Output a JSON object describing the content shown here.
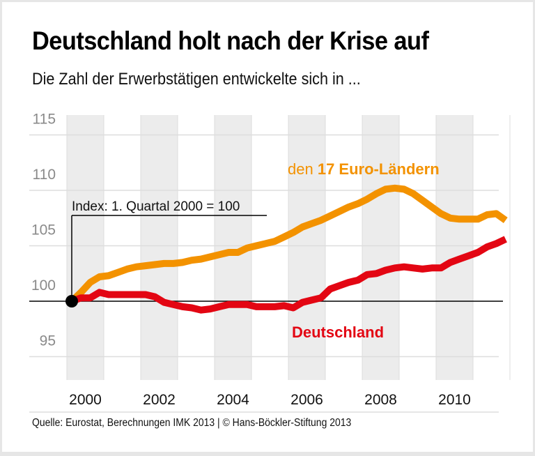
{
  "header": {
    "title": "Deutschland holt nach der Krise auf",
    "subtitle": "Die Zahl der Erwerbstätigen entwickelte sich in ..."
  },
  "footer": {
    "source": "Quelle: Eurostat, Berechnungen IMK 2013 | © Hans-Böckler-Stiftung 2013"
  },
  "colors": {
    "euro": "#f39200",
    "germany": "#e30613",
    "band": "#ececec",
    "grid": "#dddddd",
    "axis_label": "#8a8a8a"
  },
  "chart_data": {
    "type": "line",
    "title": "Deutschland holt nach der Krise auf",
    "subtitle": "Die Zahl der Erwerbstätigen entwickelte sich in ...",
    "xlabel": "",
    "ylabel": "",
    "annotation": "Index: 1. Quartal 2000 = 100",
    "x_unit": "quarter",
    "x_start": "2000 Q1",
    "x_end": "2011 Q4",
    "x_tick_labels": [
      "2000",
      "2002",
      "2004",
      "2006",
      "2008",
      "2010"
    ],
    "y_tick_labels": [
      "115",
      "110",
      "105",
      "100",
      "95"
    ],
    "y_ticks": [
      115,
      110,
      105,
      100,
      95
    ],
    "ylim": [
      90,
      116
    ],
    "baseline": 100,
    "grid": true,
    "legend": "inline labels",
    "series": [
      {
        "name": "den 17 Euro-Ländern",
        "label_prefix": "den ",
        "label_bold": "17 Euro-Ländern",
        "color": "#f39200",
        "values": [
          100.0,
          100.8,
          101.7,
          102.2,
          102.3,
          102.6,
          102.9,
          103.1,
          103.2,
          103.3,
          103.4,
          103.4,
          103.5,
          103.7,
          103.8,
          104.0,
          104.2,
          104.4,
          104.4,
          104.8,
          105.0,
          105.2,
          105.4,
          105.8,
          106.2,
          106.7,
          107.0,
          107.3,
          107.7,
          108.1,
          108.5,
          108.8,
          109.2,
          109.7,
          110.1,
          110.2,
          110.1,
          109.7,
          109.1,
          108.5,
          107.9,
          107.5,
          107.4,
          107.4,
          107.4,
          107.8,
          107.9,
          107.3
        ]
      },
      {
        "name": "Deutschland",
        "color": "#e30613",
        "values": [
          100.0,
          100.3,
          100.3,
          100.8,
          100.6,
          100.6,
          100.6,
          100.6,
          100.6,
          100.4,
          99.9,
          99.7,
          99.5,
          99.4,
          99.2,
          99.3,
          99.5,
          99.7,
          99.7,
          99.7,
          99.5,
          99.5,
          99.5,
          99.6,
          99.4,
          99.9,
          100.1,
          100.3,
          101.1,
          101.4,
          101.7,
          101.9,
          102.4,
          102.5,
          102.8,
          103.0,
          103.1,
          103.0,
          102.9,
          103.0,
          103.0,
          103.5,
          103.8,
          104.1,
          104.4,
          104.9,
          105.2,
          105.6
        ]
      }
    ]
  }
}
